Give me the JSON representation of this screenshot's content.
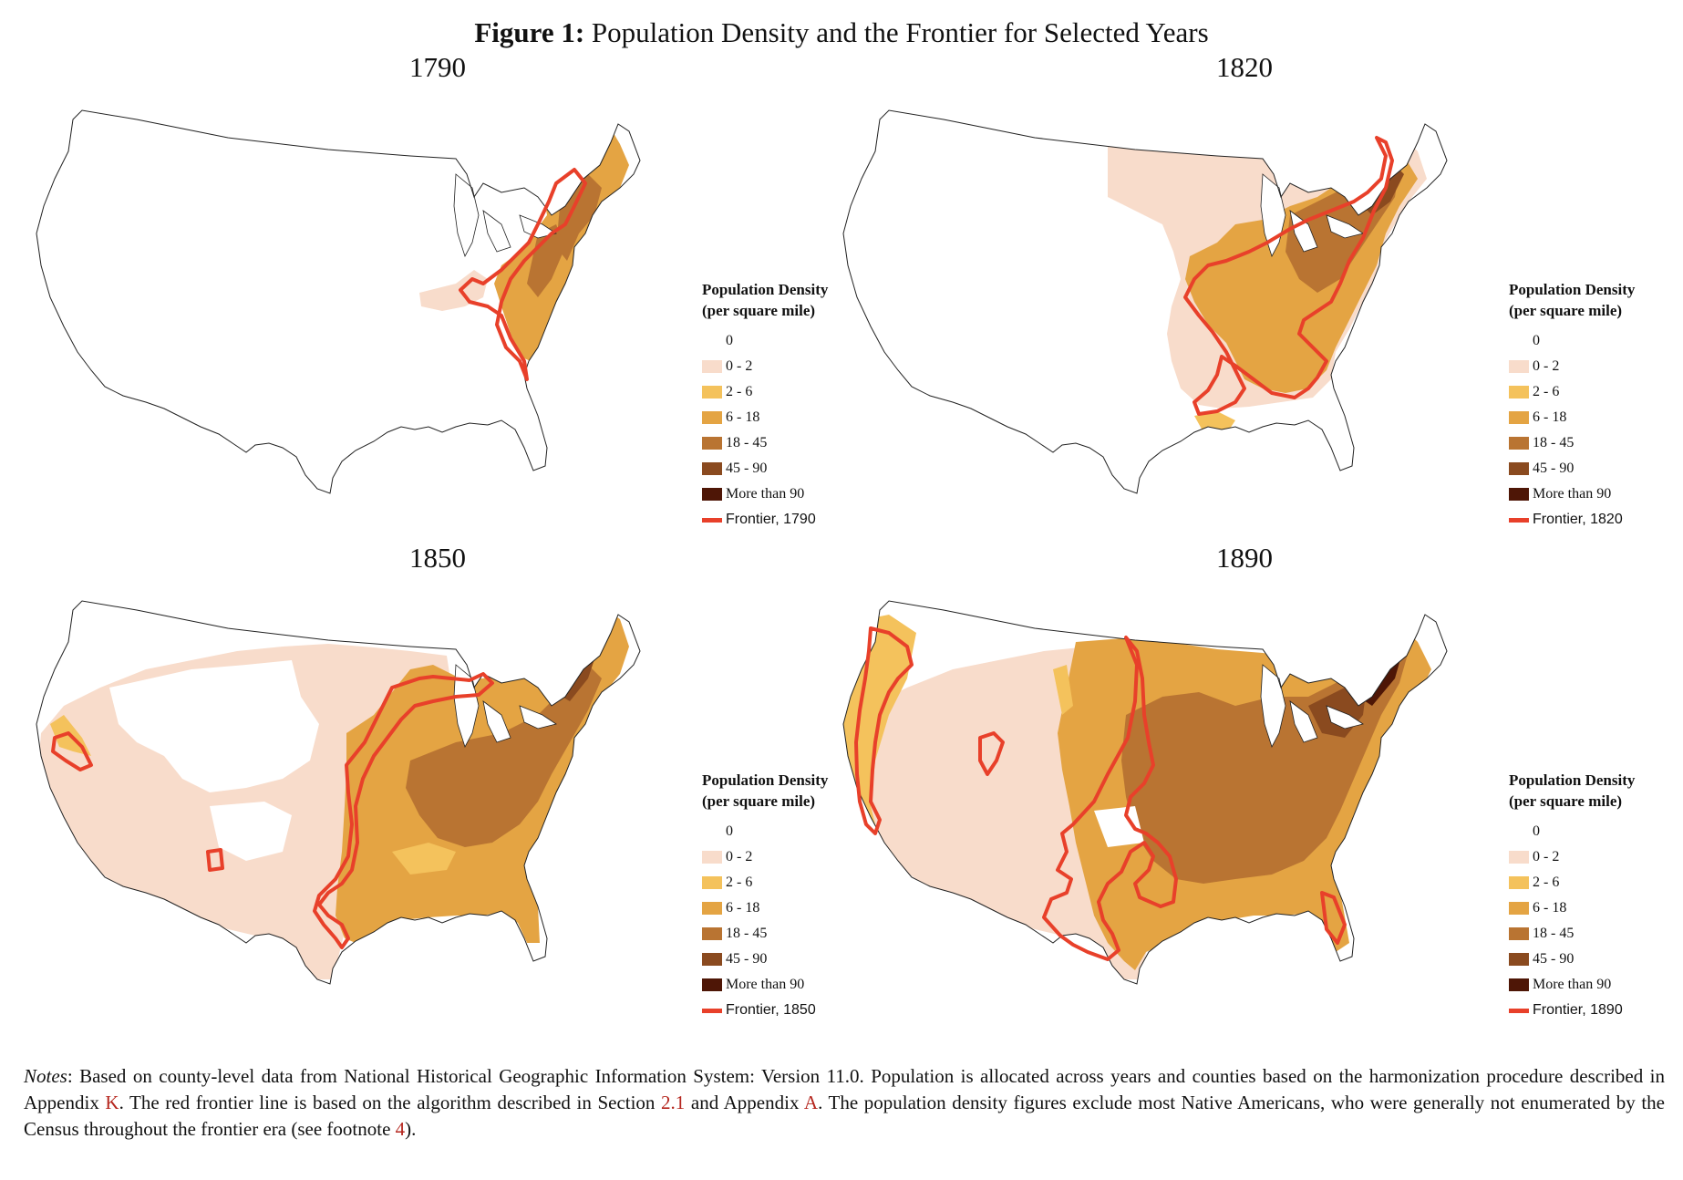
{
  "figure": {
    "label": "Figure 1:",
    "title": "Population Density and the Frontier for Selected Years"
  },
  "legend": {
    "title_line1": "Population Density",
    "title_line2": "(per square mile)",
    "categories": [
      {
        "label": "0",
        "color": "#ffffff"
      },
      {
        "label": "0 - 2",
        "color": "#f8dccb"
      },
      {
        "label": "2 - 6",
        "color": "#f4c25c"
      },
      {
        "label": "6 - 18",
        "color": "#e4a443"
      },
      {
        "label": "18 - 45",
        "color": "#b97432"
      },
      {
        "label": "45 - 90",
        "color": "#8a4a1f"
      },
      {
        "label": "More than 90",
        "color": "#4e1606"
      }
    ],
    "frontier_color": "#e8402a"
  },
  "panels": [
    {
      "year": "1790",
      "frontier_label": "Frontier, 1790"
    },
    {
      "year": "1820",
      "frontier_label": "Frontier, 1820"
    },
    {
      "year": "1850",
      "frontier_label": "Frontier, 1850"
    },
    {
      "year": "1890",
      "frontier_label": "Frontier, 1890"
    }
  ],
  "notes": {
    "label": "Notes",
    "text_part1": ": Based on county-level data from National Historical Geographic Information System: Version 11.0. Population is allocated across years and counties based on the harmonization procedure described in Appendix ",
    "ref_appendix_k": "K",
    "text_part2": ". The red frontier line is based on the algorithm described in Section ",
    "ref_section": "2.1",
    "text_part3": " and Appendix ",
    "ref_appendix_a": "A",
    "text_part4": ". The population density figures exclude most Native Americans, who were generally not enumerated by the Census throughout the frontier era (see footnote ",
    "ref_footnote": "4",
    "text_part5": ")."
  }
}
